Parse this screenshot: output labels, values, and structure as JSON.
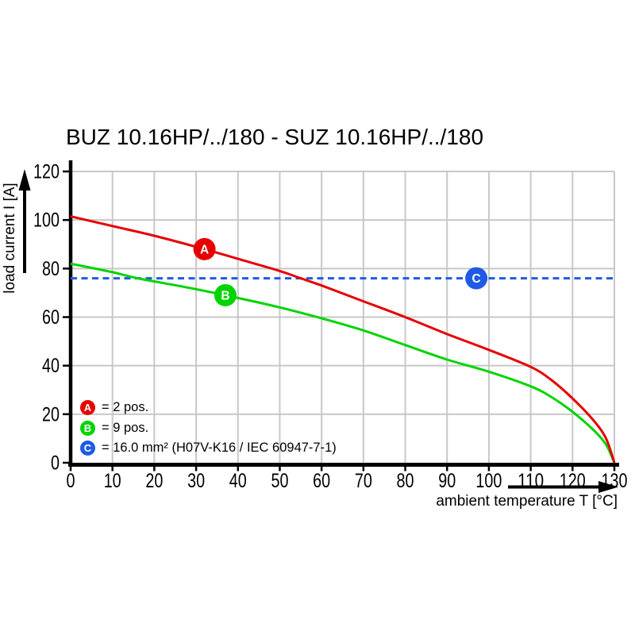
{
  "title": "BUZ 10.16HP/../180 - SUZ 10.16HP/../180",
  "colors": {
    "red": "#e60000",
    "green": "#00d400",
    "blue": "#1e5ae6",
    "grid": "#c8c8c8",
    "axis": "#000000",
    "background": "#ffffff",
    "marker_letter": "#ffffff"
  },
  "axes": {
    "x": {
      "label": "ambient temperature T [°C]",
      "min": 0,
      "max": 130,
      "tick_step": 10
    },
    "y": {
      "label": "load current I [A]",
      "min": 0,
      "max": 120,
      "tick_step": 20
    }
  },
  "legend": [
    {
      "letter": "A",
      "color": "#e60000",
      "label": "= 2 pos."
    },
    {
      "letter": "B",
      "color": "#00d400",
      "label": "= 9 pos."
    },
    {
      "letter": "C",
      "color": "#1e5ae6",
      "label": "= 16.0 mm² (H07V-K16 / IEC 60947-7-1)"
    }
  ],
  "chart_data": {
    "type": "line",
    "title": "BUZ 10.16HP/../180 - SUZ 10.16HP/../180",
    "xlabel": "ambient temperature T [°C]",
    "ylabel": "load current I [A]",
    "xlim": [
      0,
      130
    ],
    "ylim": [
      0,
      120
    ],
    "x_ticks": [
      0,
      10,
      20,
      30,
      40,
      50,
      60,
      70,
      80,
      90,
      100,
      110,
      120,
      130
    ],
    "y_ticks": [
      0,
      20,
      40,
      60,
      80,
      100,
      120
    ],
    "grid": true,
    "legend_position": "lower-left",
    "series": [
      {
        "name": "A = 2 pos.",
        "letter": "A",
        "color": "#e60000",
        "style": "solid",
        "points": [
          [
            0,
            101.5
          ],
          [
            10,
            97.5
          ],
          [
            20,
            93.5
          ],
          [
            32,
            88
          ],
          [
            40,
            84
          ],
          [
            50,
            79
          ],
          [
            55,
            76
          ],
          [
            60,
            73
          ],
          [
            70,
            66.5
          ],
          [
            80,
            60
          ],
          [
            90,
            53
          ],
          [
            100,
            46.5
          ],
          [
            110,
            39.5
          ],
          [
            115,
            34
          ],
          [
            120,
            26.5
          ],
          [
            125,
            17.5
          ],
          [
            128,
            10
          ],
          [
            130,
            0
          ]
        ]
      },
      {
        "name": "B = 9 pos.",
        "letter": "B",
        "color": "#00d400",
        "style": "solid",
        "points": [
          [
            0,
            82
          ],
          [
            10,
            78.5
          ],
          [
            16,
            76
          ],
          [
            27,
            72.5
          ],
          [
            37,
            69
          ],
          [
            50,
            64
          ],
          [
            60,
            59.5
          ],
          [
            70,
            54.5
          ],
          [
            80,
            48.5
          ],
          [
            90,
            42.5
          ],
          [
            100,
            37.5
          ],
          [
            110,
            31.5
          ],
          [
            115,
            27
          ],
          [
            120,
            21
          ],
          [
            125,
            13.5
          ],
          [
            128,
            7.5
          ],
          [
            130,
            0
          ]
        ]
      },
      {
        "name": "C = 16.0 mm² (H07V-K16 / IEC 60947-7-1)",
        "letter": "C",
        "color": "#1e5ae6",
        "style": "dashed",
        "points": [
          [
            0,
            76
          ],
          [
            130,
            76
          ]
        ]
      }
    ],
    "markers": [
      {
        "letter": "A",
        "x": 32,
        "y": 88,
        "color": "#e60000"
      },
      {
        "letter": "B",
        "x": 37,
        "y": 69,
        "color": "#00d400"
      },
      {
        "letter": "C",
        "x": 97,
        "y": 76,
        "color": "#1e5ae6"
      }
    ]
  }
}
